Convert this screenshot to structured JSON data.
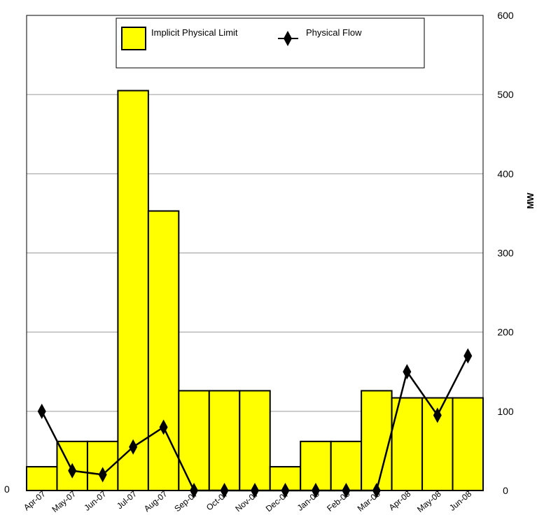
{
  "chart_data": {
    "type": "bar",
    "categories": [
      "Apr-07",
      "May-07",
      "Jun-07",
      "Jul-07",
      "Aug-07",
      "Sep-07",
      "Oct-07",
      "Nov-07",
      "Dec-07",
      "Jan-08",
      "Feb-08",
      "Mar-08",
      "Apr-08",
      "May-08",
      "Jun-08"
    ],
    "series": [
      {
        "name": "Implicit Physical Limit",
        "type": "bar",
        "color": "#ffff00",
        "values": [
          30,
          62,
          62,
          505,
          353,
          126,
          126,
          126,
          30,
          62,
          62,
          126,
          117,
          117,
          117
        ]
      },
      {
        "name": "Physical Flow",
        "type": "line",
        "color": "#000000",
        "marker": "diamond",
        "values": [
          100,
          25,
          20,
          55,
          80,
          0,
          0,
          0,
          0,
          0,
          0,
          0,
          150,
          95,
          170
        ]
      }
    ],
    "ylabel": "MW",
    "ylim": [
      0,
      600
    ],
    "yticks": [
      0,
      100,
      200,
      300,
      400,
      500,
      600
    ],
    "left_axis_tick_labels": [
      "0"
    ],
    "grid": true,
    "legend_position": "top"
  }
}
